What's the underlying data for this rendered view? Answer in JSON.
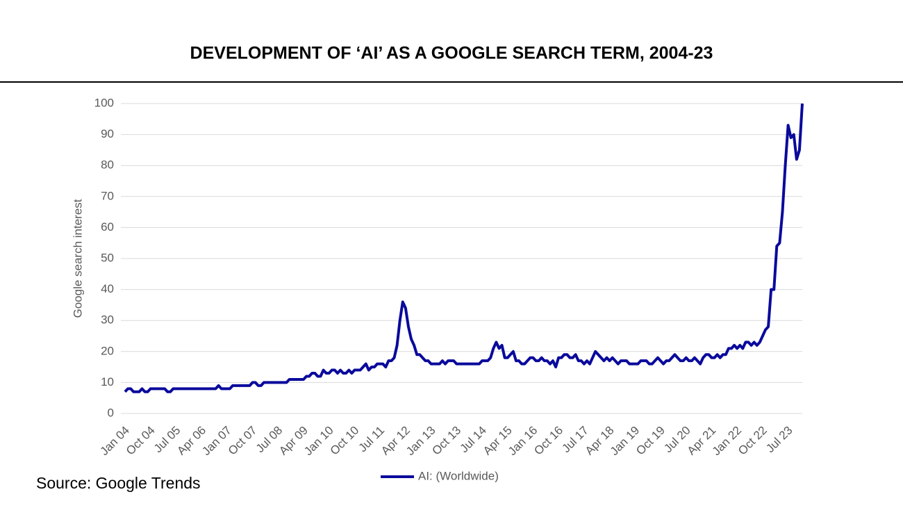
{
  "chart_data": {
    "type": "line",
    "title": "DEVELOPMENT OF ‘AI’ AS A GOOGLE SEARCH TERM, 2004-23",
    "y_label": "Google search interest",
    "source": "Source: Google Trends",
    "categories": [
      "Jan 04",
      null,
      null,
      null,
      null,
      null,
      null,
      null,
      null,
      "Oct 04",
      null,
      null,
      null,
      null,
      null,
      null,
      null,
      null,
      "Jul 05",
      null,
      null,
      null,
      null,
      null,
      null,
      null,
      null,
      "Apr 06",
      null,
      null,
      null,
      null,
      null,
      null,
      null,
      null,
      "Jan 07",
      null,
      null,
      null,
      null,
      null,
      null,
      null,
      null,
      "Oct 07",
      null,
      null,
      null,
      null,
      null,
      null,
      null,
      null,
      "Jul 08",
      null,
      null,
      null,
      null,
      null,
      null,
      null,
      null,
      "Apr 09",
      null,
      null,
      null,
      null,
      null,
      null,
      null,
      null,
      "Jan 10",
      null,
      null,
      null,
      null,
      null,
      null,
      null,
      null,
      "Oct 10",
      null,
      null,
      null,
      null,
      null,
      null,
      null,
      null,
      "Jul 11",
      null,
      null,
      null,
      null,
      null,
      null,
      null,
      null,
      "Apr 12",
      null,
      null,
      null,
      null,
      null,
      null,
      null,
      null,
      "Jan 13",
      null,
      null,
      null,
      null,
      null,
      null,
      null,
      null,
      "Oct 13",
      null,
      null,
      null,
      null,
      null,
      null,
      null,
      null,
      "Jul 14",
      null,
      null,
      null,
      null,
      null,
      null,
      null,
      null,
      "Apr 15",
      null,
      null,
      null,
      null,
      null,
      null,
      null,
      null,
      "Jan 16",
      null,
      null,
      null,
      null,
      null,
      null,
      null,
      null,
      "Oct 16",
      null,
      null,
      null,
      null,
      null,
      null,
      null,
      null,
      "Jul 17",
      null,
      null,
      null,
      null,
      null,
      null,
      null,
      null,
      "Apr 18",
      null,
      null,
      null,
      null,
      null,
      null,
      null,
      null,
      "Jan 19",
      null,
      null,
      null,
      null,
      null,
      null,
      null,
      null,
      "Oct 19",
      null,
      null,
      null,
      null,
      null,
      null,
      null,
      null,
      "Jul 20",
      null,
      null,
      null,
      null,
      null,
      null,
      null,
      null,
      "Apr 21",
      null,
      null,
      null,
      null,
      null,
      null,
      null,
      null,
      "Jan 22",
      null,
      null,
      null,
      null,
      null,
      null,
      null,
      null,
      "Oct 22",
      null,
      null,
      null,
      null,
      null,
      null,
      null,
      null,
      "Jul 23",
      null,
      null,
      null,
      null,
      null
    ],
    "series": [
      {
        "name": "AI: (Worldwide)",
        "color": "#0a0a9c",
        "values": [
          7,
          8,
          8,
          7,
          7,
          7,
          8,
          7,
          7,
          8,
          8,
          8,
          8,
          8,
          8,
          7,
          7,
          8,
          8,
          8,
          8,
          8,
          8,
          8,
          8,
          8,
          8,
          8,
          8,
          8,
          8,
          8,
          8,
          9,
          8,
          8,
          8,
          8,
          9,
          9,
          9,
          9,
          9,
          9,
          9,
          10,
          10,
          9,
          9,
          10,
          10,
          10,
          10,
          10,
          10,
          10,
          10,
          10,
          11,
          11,
          11,
          11,
          11,
          11,
          12,
          12,
          13,
          13,
          12,
          12,
          14,
          13,
          13,
          14,
          14,
          13,
          14,
          13,
          13,
          14,
          13,
          14,
          14,
          14,
          15,
          16,
          14,
          15,
          15,
          16,
          16,
          16,
          15,
          17,
          17,
          18,
          22,
          30,
          36,
          34,
          28,
          24,
          22,
          19,
          19,
          18,
          17,
          17,
          16,
          16,
          16,
          16,
          17,
          16,
          17,
          17,
          17,
          16,
          16,
          16,
          16,
          16,
          16,
          16,
          16,
          16,
          17,
          17,
          17,
          18,
          21,
          23,
          21,
          22,
          18,
          18,
          19,
          20,
          17,
          17,
          16,
          16,
          17,
          18,
          18,
          17,
          17,
          18,
          17,
          17,
          16,
          17,
          15,
          18,
          18,
          19,
          19,
          18,
          18,
          19,
          17,
          17,
          16,
          17,
          16,
          18,
          20,
          19,
          18,
          17,
          18,
          17,
          18,
          17,
          16,
          17,
          17,
          17,
          16,
          16,
          16,
          16,
          17,
          17,
          17,
          16,
          16,
          17,
          18,
          17,
          16,
          17,
          17,
          18,
          19,
          18,
          17,
          17,
          18,
          17,
          17,
          18,
          17,
          16,
          18,
          19,
          19,
          18,
          18,
          19,
          18,
          19,
          19,
          21,
          21,
          22,
          21,
          22,
          21,
          23,
          23,
          22,
          23,
          22,
          23,
          25,
          27,
          28,
          40,
          40,
          54,
          55,
          65,
          80,
          93,
          89,
          90,
          82,
          85,
          100
        ]
      }
    ],
    "ylim": [
      0,
      100
    ],
    "yticks": [
      0,
      10,
      20,
      30,
      40,
      50,
      60,
      70,
      80,
      90,
      100
    ],
    "grid": true,
    "legend": "bottom"
  }
}
